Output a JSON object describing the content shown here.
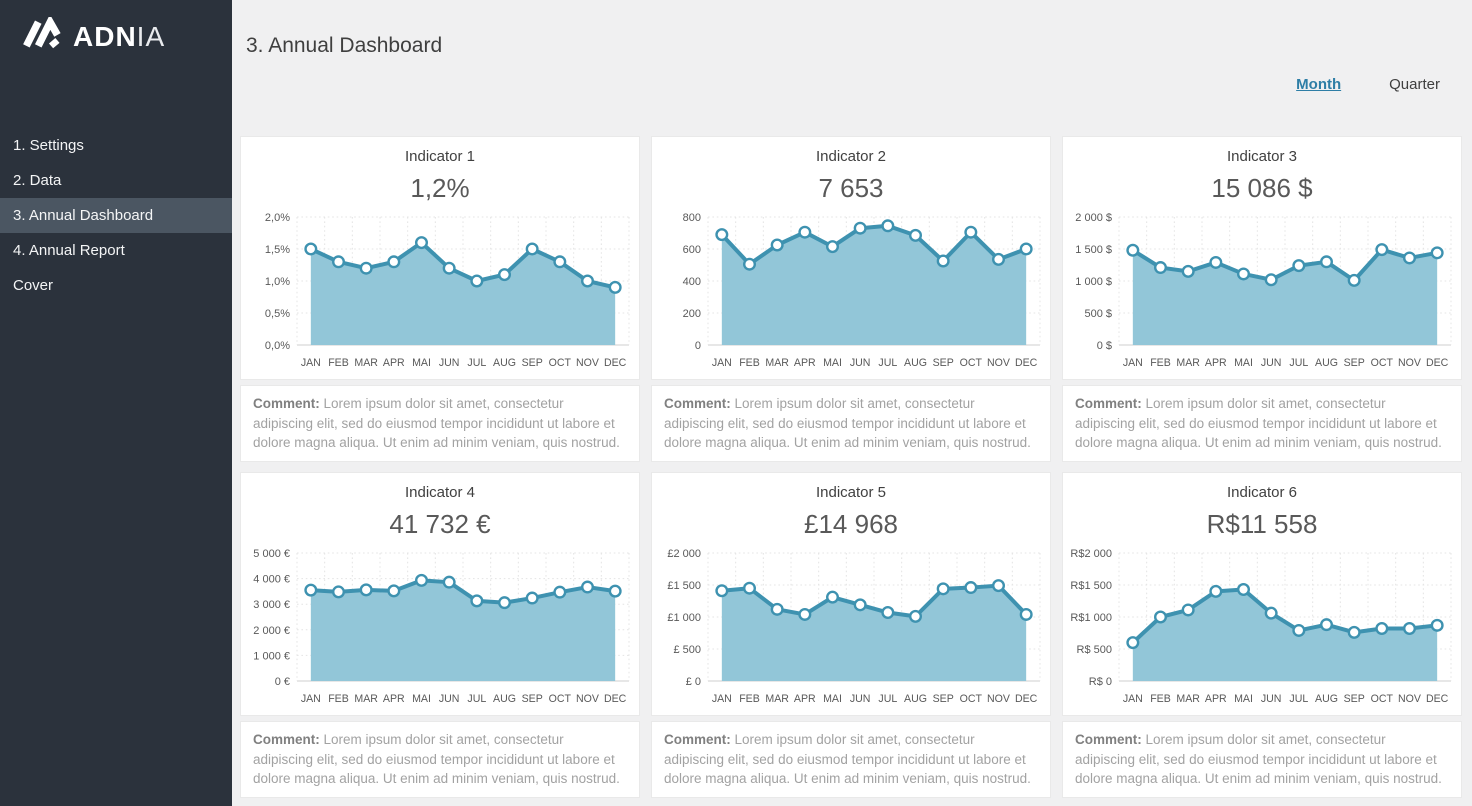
{
  "brand": {
    "logo_bold": "ADN",
    "logo_light": "IA"
  },
  "sidebar": {
    "items": [
      {
        "label": "1. Settings",
        "active": false
      },
      {
        "label": "2. Data",
        "active": false
      },
      {
        "label": "3. Annual Dashboard",
        "active": true
      },
      {
        "label": "4. Annual Report",
        "active": false
      },
      {
        "label": "Cover",
        "active": false
      }
    ]
  },
  "header": {
    "title": "3. Annual Dashboard"
  },
  "view_toggle": {
    "month_label": "Month",
    "quarter_label": "Quarter",
    "active": "Month"
  },
  "comment": {
    "label": "Comment:",
    "text": "Lorem ipsum dolor sit amet, consectetur adipiscing elit, sed do eiusmod tempor incididunt ut labore et dolore magna aliqua. Ut enim ad minim veniam, quis nostrud."
  },
  "colors": {
    "sidebar_bg": "#2b323c",
    "sidebar_active_bg": "#4b5662",
    "page_bg": "#f0f0f1",
    "card_bg": "#ffffff",
    "line": "#3e92b0",
    "fill": "#92c6d8",
    "marker_fill": "#ffffff",
    "grid": "#e4e4e4",
    "baseline": "#cfcfcf",
    "axis_text": "#595959",
    "accent_link": "#2e7ea6",
    "title_text": "#404040",
    "value_text": "#595959",
    "comment_label": "#808080",
    "comment_text": "#a2a2a2"
  },
  "chart_data": {
    "type": "area",
    "legend": "none",
    "grid": "dotted",
    "categories": [
      "JAN",
      "FEB",
      "MAR",
      "APR",
      "MAI",
      "JUN",
      "JUL",
      "AUG",
      "SEP",
      "OCT",
      "NOV",
      "DEC"
    ],
    "charts": [
      {
        "title": "Indicator 1",
        "display_value": "1,2%",
        "values": [
          1.5,
          1.3,
          1.2,
          1.3,
          1.6,
          1.2,
          1.0,
          1.1,
          1.5,
          1.3,
          1.0,
          0.9
        ],
        "ylim": [
          0,
          2
        ],
        "yticks": [
          {
            "v": 0,
            "label": "0,0%"
          },
          {
            "v": 0.5,
            "label": "0,5%"
          },
          {
            "v": 1,
            "label": "1,0%"
          },
          {
            "v": 1.5,
            "label": "1,5%"
          },
          {
            "v": 2,
            "label": "2,0%"
          }
        ]
      },
      {
        "title": "Indicator 2",
        "display_value": "7 653",
        "values": [
          690,
          505,
          625,
          705,
          615,
          730,
          745,
          685,
          525,
          705,
          535,
          600
        ],
        "ylim": [
          0,
          800
        ],
        "yticks": [
          {
            "v": 0,
            "label": "0"
          },
          {
            "v": 200,
            "label": "200"
          },
          {
            "v": 400,
            "label": "400"
          },
          {
            "v": 600,
            "label": "600"
          },
          {
            "v": 800,
            "label": "800"
          }
        ]
      },
      {
        "title": "Indicator 3",
        "display_value": "15 086 $",
        "values": [
          1480,
          1210,
          1150,
          1290,
          1110,
          1020,
          1240,
          1300,
          1010,
          1490,
          1360,
          1440
        ],
        "ylim": [
          0,
          2000
        ],
        "yticks": [
          {
            "v": 0,
            "label": "0 $"
          },
          {
            "v": 500,
            "label": "500 $"
          },
          {
            "v": 1000,
            "label": "1 000 $"
          },
          {
            "v": 1500,
            "label": "1 500 $"
          },
          {
            "v": 2000,
            "label": "2 000 $"
          }
        ]
      },
      {
        "title": "Indicator 4",
        "display_value": "41 732 €",
        "values": [
          3550,
          3480,
          3560,
          3520,
          3930,
          3860,
          3130,
          3060,
          3240,
          3470,
          3670,
          3510
        ],
        "ylim": [
          0,
          5000
        ],
        "yticks": [
          {
            "v": 0,
            "label": "0 €"
          },
          {
            "v": 1000,
            "label": "1 000 €"
          },
          {
            "v": 2000,
            "label": "2 000 €"
          },
          {
            "v": 3000,
            "label": "3 000 €"
          },
          {
            "v": 4000,
            "label": "4 000 €"
          },
          {
            "v": 5000,
            "label": "5 000 €"
          }
        ]
      },
      {
        "title": "Indicator 5",
        "display_value": "£14 968",
        "values": [
          1410,
          1450,
          1120,
          1040,
          1310,
          1190,
          1070,
          1010,
          1440,
          1460,
          1490,
          1040
        ],
        "ylim": [
          0,
          2000
        ],
        "yticks": [
          {
            "v": 0,
            "label": "£ 0"
          },
          {
            "v": 500,
            "label": "£ 500"
          },
          {
            "v": 1000,
            "label": "£1 000"
          },
          {
            "v": 1500,
            "label": "£1 500"
          },
          {
            "v": 2000,
            "label": "£2 000"
          }
        ]
      },
      {
        "title": "Indicator 6",
        "display_value": "R$11 558",
        "values": [
          600,
          1000,
          1110,
          1400,
          1430,
          1060,
          790,
          880,
          760,
          820,
          820,
          870
        ],
        "ylim": [
          0,
          2000
        ],
        "yticks": [
          {
            "v": 0,
            "label": "R$ 0"
          },
          {
            "v": 500,
            "label": "R$ 500"
          },
          {
            "v": 1000,
            "label": "R$1 000"
          },
          {
            "v": 1500,
            "label": "R$1 500"
          },
          {
            "v": 2000,
            "label": "R$2 000"
          }
        ]
      }
    ]
  }
}
